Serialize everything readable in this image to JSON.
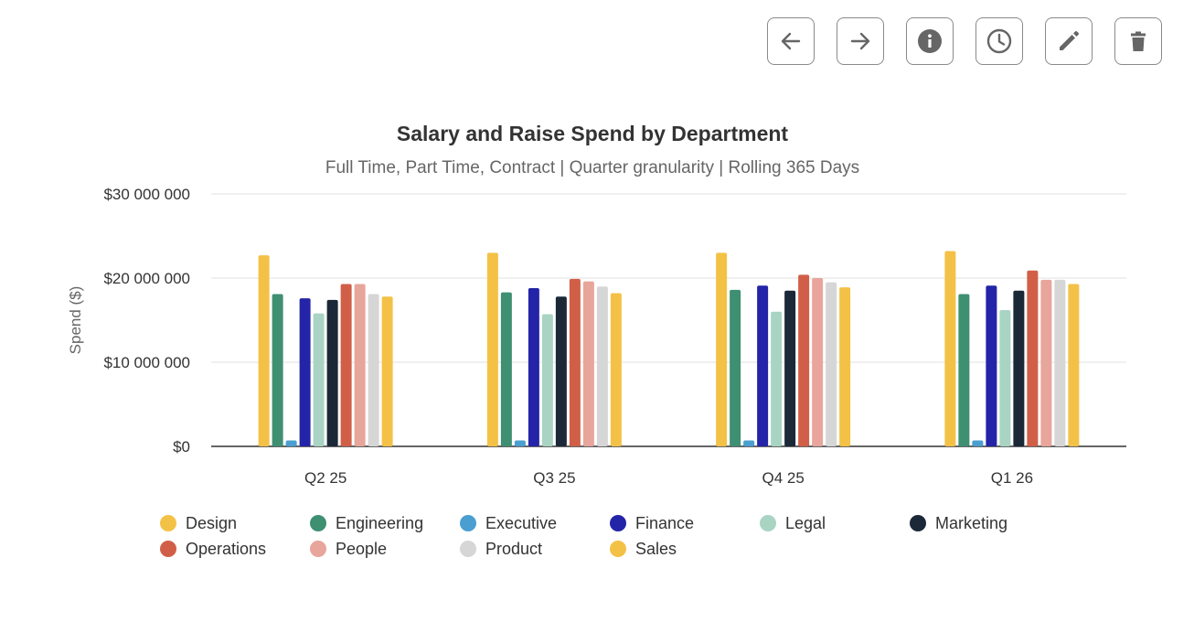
{
  "toolbar": {
    "buttons": [
      {
        "name": "back-button",
        "icon": "arrow-left-icon"
      },
      {
        "name": "forward-button",
        "icon": "arrow-right-icon"
      },
      {
        "name": "info-button",
        "icon": "info-icon"
      },
      {
        "name": "history-button",
        "icon": "clock-icon"
      },
      {
        "name": "edit-button",
        "icon": "pencil-icon"
      },
      {
        "name": "delete-button",
        "icon": "trash-icon"
      }
    ]
  },
  "chart_data": {
    "type": "bar",
    "title": "Salary and Raise Spend by Department",
    "subtitle": "Full Time, Part Time, Contract | Quarter granularity | Rolling 365 Days",
    "xlabel": "",
    "ylabel": "Spend ($)",
    "ylim": [
      0,
      30000000
    ],
    "yticks": [
      0,
      10000000,
      20000000,
      30000000
    ],
    "ytick_labels": [
      "$0",
      "$10 000 000",
      "$20 000 000",
      "$30 000 000"
    ],
    "grid": true,
    "legend_position": "bottom",
    "categories": [
      "Q2 25",
      "Q3 25",
      "Q4 25",
      "Q1 26"
    ],
    "series": [
      {
        "name": "Design",
        "color": "#f4c147",
        "values": [
          22700000,
          23000000,
          23000000,
          23200000
        ]
      },
      {
        "name": "Engineering",
        "color": "#3f8f72",
        "values": [
          18100000,
          18300000,
          18600000,
          18100000
        ]
      },
      {
        "name": "Executive",
        "color": "#4a9fd0",
        "values": [
          700000,
          700000,
          700000,
          700000
        ]
      },
      {
        "name": "Finance",
        "color": "#2424a8",
        "values": [
          17600000,
          18800000,
          19100000,
          19100000
        ]
      },
      {
        "name": "Legal",
        "color": "#a9d4c4",
        "values": [
          15800000,
          15700000,
          16000000,
          16200000
        ]
      },
      {
        "name": "Marketing",
        "color": "#1b2838",
        "values": [
          17400000,
          17800000,
          18500000,
          18500000
        ]
      },
      {
        "name": "Operations",
        "color": "#d15f48",
        "values": [
          19300000,
          19900000,
          20400000,
          20900000
        ]
      },
      {
        "name": "People",
        "color": "#e8a59b",
        "values": [
          19300000,
          19600000,
          20000000,
          19800000
        ]
      },
      {
        "name": "Product",
        "color": "#d6d6d6",
        "values": [
          18100000,
          19000000,
          19500000,
          19800000
        ]
      },
      {
        "name": "Sales",
        "color": "#f4c147",
        "values": [
          17800000,
          18200000,
          18900000,
          19300000
        ]
      }
    ]
  }
}
